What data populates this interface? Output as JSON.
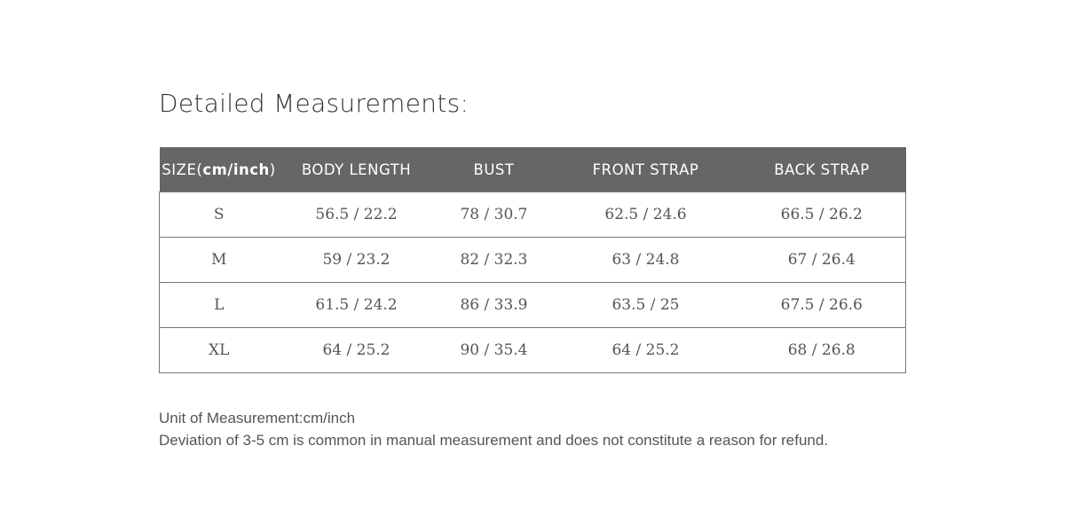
{
  "title": "Detailed Measurements:",
  "table": {
    "headers": {
      "size_prefix": "SIZE(",
      "size_unit": "cm/inch",
      "size_suffix": ")",
      "cols": [
        "BODY LENGTH",
        "BUST",
        "FRONT STRAP",
        "BACK STRAP"
      ]
    },
    "rows": [
      [
        "S",
        "56.5 / 22.2",
        "78 / 30.7",
        "62.5 / 24.6",
        "66.5 / 26.2"
      ],
      [
        "M",
        "59 / 23.2",
        "82 / 32.3",
        "63 / 24.8",
        "67 / 26.4"
      ],
      [
        "L",
        "61.5 / 24.2",
        "86 / 33.9",
        "63.5 / 25",
        "67.5 / 26.6"
      ],
      [
        "XL",
        "64 / 25.2",
        "90 / 35.4",
        "64 / 25.2",
        "68 / 26.8"
      ]
    ]
  },
  "notes": {
    "unit": "Unit of Measurement:cm/inch",
    "deviation": "Deviation of 3-5 cm is common in manual measurement and does not constitute a reason for refund."
  },
  "colors": {
    "header_bg": "#666666"
  }
}
